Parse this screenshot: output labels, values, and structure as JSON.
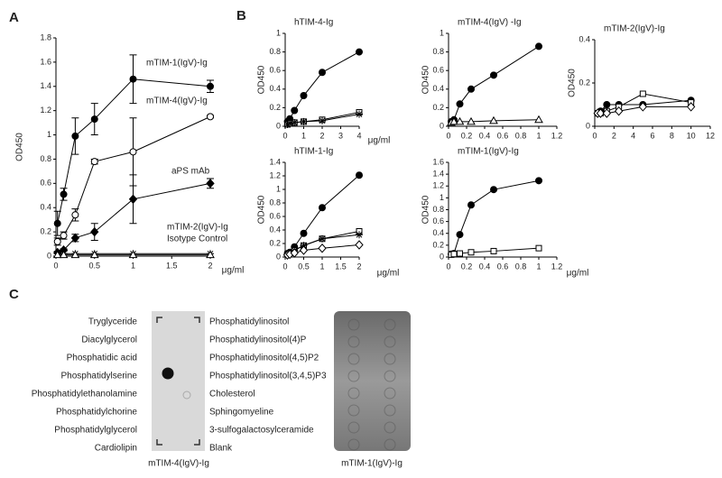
{
  "panels": [
    "A",
    "B",
    "C"
  ],
  "chart_data": [
    {
      "type": "line",
      "ylabel": "OD450",
      "xlabel": "μg/ml",
      "xlim": [
        0,
        2
      ],
      "ylim": [
        0,
        1.8
      ],
      "xticks": [
        0,
        0.5,
        1,
        1.5,
        2
      ],
      "yticks": [
        0,
        0.2,
        0.4,
        0.6,
        0.8,
        1,
        1.2,
        1.4,
        1.6,
        1.8
      ],
      "x": [
        0.02,
        0.1,
        0.25,
        0.5,
        1,
        2
      ],
      "series": [
        {
          "name": "mTIM-1(IgV)-Ig",
          "marker": "circle-filled",
          "values": [
            0.27,
            0.51,
            0.99,
            1.13,
            1.46,
            1.4
          ],
          "error": [
            0.1,
            0.05,
            0.15,
            0.13,
            0.2,
            0.05
          ]
        },
        {
          "name": "mTIM-4(IgV)-Ig",
          "marker": "circle-open",
          "values": [
            0.12,
            0.17,
            0.34,
            0.78,
            0.86,
            1.15
          ],
          "error": [
            0.03,
            0.03,
            0.05,
            0.02,
            0.28,
            0.01
          ]
        },
        {
          "name": "aPS mAb",
          "marker": "diamond-filled",
          "values": [
            0.03,
            0.05,
            0.15,
            0.2,
            0.47,
            0.6
          ],
          "error": [
            0.01,
            0.01,
            0.03,
            0.07,
            0.2,
            0.04
          ]
        },
        {
          "name": "mTIM-2(IgV)-Ig",
          "marker": "star",
          "values": [
            0.02,
            0.02,
            0.02,
            0.02,
            0.02,
            0.02
          ]
        },
        {
          "name": "Isotype Control",
          "marker": "triangle-open",
          "values": [
            0.01,
            0.01,
            0.01,
            0.01,
            0.01,
            0.01
          ]
        }
      ]
    },
    {
      "type": "line",
      "title": "hTIM-4-Ig",
      "ylabel": "OD450",
      "xlabel": "μg/ml",
      "xlim": [
        0,
        4
      ],
      "ylim": [
        0,
        1
      ],
      "xticks": [
        0,
        1,
        2,
        3,
        4
      ],
      "yticks": [
        0,
        0.2,
        0.4,
        0.6,
        0.8,
        1
      ],
      "x": [
        0.125,
        0.25,
        0.5,
        1,
        2,
        4
      ],
      "series": [
        {
          "marker": "circle-filled",
          "values": [
            0.05,
            0.08,
            0.17,
            0.33,
            0.58,
            0.8
          ]
        },
        {
          "marker": "square-open",
          "values": [
            0.02,
            0.03,
            0.04,
            0.05,
            0.07,
            0.15
          ]
        },
        {
          "marker": "star",
          "values": [
            0.02,
            0.03,
            0.04,
            0.05,
            0.06,
            0.13
          ]
        }
      ]
    },
    {
      "type": "line",
      "title": "mTIM-4(IgV) -Ig",
      "ylabel": "OD450",
      "xlim": [
        0,
        1.2
      ],
      "ylim": [
        0,
        1
      ],
      "xticks": [
        0,
        0.2,
        0.4,
        0.6,
        0.8,
        1,
        1.2
      ],
      "yticks": [
        0,
        0.2,
        0.4,
        0.6,
        0.8,
        1
      ],
      "x": [
        0.03,
        0.06,
        0.125,
        0.25,
        0.5,
        1
      ],
      "series": [
        {
          "marker": "circle-filled",
          "values": [
            0.05,
            0.07,
            0.24,
            0.4,
            0.55,
            0.86
          ]
        },
        {
          "marker": "triangle-open",
          "values": [
            0.04,
            0.05,
            0.05,
            0.05,
            0.06,
            0.07
          ]
        }
      ]
    },
    {
      "type": "line",
      "title": "mTIM-2(IgV)-Ig",
      "ylabel": "OD450",
      "xlim": [
        0,
        12
      ],
      "ylim": [
        0,
        0.4
      ],
      "xticks": [
        0,
        2,
        4,
        6,
        8,
        10,
        12
      ],
      "yticks": [
        0,
        0.2,
        0.4
      ],
      "x": [
        0.3,
        0.6,
        1.25,
        2.5,
        5,
        10
      ],
      "series": [
        {
          "marker": "circle-filled",
          "values": [
            0.06,
            0.07,
            0.1,
            0.1,
            0.1,
            0.12
          ]
        },
        {
          "marker": "square-open",
          "values": [
            0.06,
            0.06,
            0.07,
            0.09,
            0.15,
            0.11
          ]
        },
        {
          "marker": "diamond-open",
          "values": [
            0.06,
            0.06,
            0.06,
            0.07,
            0.09,
            0.09
          ]
        }
      ]
    },
    {
      "type": "line",
      "title": "hTIM-1-Ig",
      "ylabel": "OD450",
      "xlabel": "μg/ml",
      "xlim": [
        0,
        2
      ],
      "ylim": [
        0,
        1.4
      ],
      "xticks": [
        0,
        0.5,
        1,
        1.5,
        2
      ],
      "yticks": [
        0,
        0.2,
        0.4,
        0.6,
        0.8,
        1,
        1.2,
        1.4
      ],
      "x": [
        0.06,
        0.125,
        0.25,
        0.5,
        1,
        2
      ],
      "series": [
        {
          "marker": "circle-filled",
          "values": [
            0.05,
            0.07,
            0.15,
            0.35,
            0.73,
            1.21
          ]
        },
        {
          "marker": "square-open",
          "values": [
            0.04,
            0.06,
            0.1,
            0.17,
            0.27,
            0.38
          ]
        },
        {
          "marker": "star",
          "values": [
            0.04,
            0.06,
            0.1,
            0.17,
            0.27,
            0.33
          ]
        },
        {
          "marker": "diamond-open",
          "values": [
            0.03,
            0.04,
            0.06,
            0.1,
            0.13,
            0.18
          ]
        }
      ]
    },
    {
      "type": "line",
      "title": "mTIM-1(IgV)-Ig",
      "ylabel": "OD450",
      "xlabel": "μg/ml",
      "xlim": [
        0,
        1.2
      ],
      "ylim": [
        0,
        1.6
      ],
      "xticks": [
        0,
        0.2,
        0.4,
        0.6,
        0.8,
        1,
        1.2
      ],
      "yticks": [
        0,
        0.2,
        0.4,
        0.6,
        0.8,
        1,
        1.2,
        1.4,
        1.6
      ],
      "x": [
        0.03,
        0.06,
        0.125,
        0.25,
        0.5,
        1
      ],
      "series": [
        {
          "marker": "circle-filled",
          "values": [
            0.05,
            0.06,
            0.38,
            0.88,
            1.14,
            1.29
          ]
        },
        {
          "marker": "square-open",
          "values": [
            0.04,
            0.05,
            0.06,
            0.08,
            0.1,
            0.15
          ]
        }
      ]
    }
  ],
  "blot": {
    "left_labels": [
      "Tryglyceride",
      "Diacylglycerol",
      "Phosphatidic acid",
      "Phosphatidylserine",
      "Phosphatidylethanolamine",
      "Phosphatidylchorine",
      "Phosphatidylglycerol",
      "Cardiolipin"
    ],
    "right_labels": [
      "Phosphatidylinositol",
      "Phosphatidylinositol(4)P",
      "Phosphatidylinositol(4,5)P2",
      "Phosphatidylinositol(3,4,5)P3",
      "Cholesterol",
      "Sphingomyeline",
      "3-sulfogalactosylceramide",
      "Blank"
    ],
    "captions": [
      "mTIM-4(IgV)-Ig",
      "mTIM-1(IgV)-Ig"
    ]
  }
}
